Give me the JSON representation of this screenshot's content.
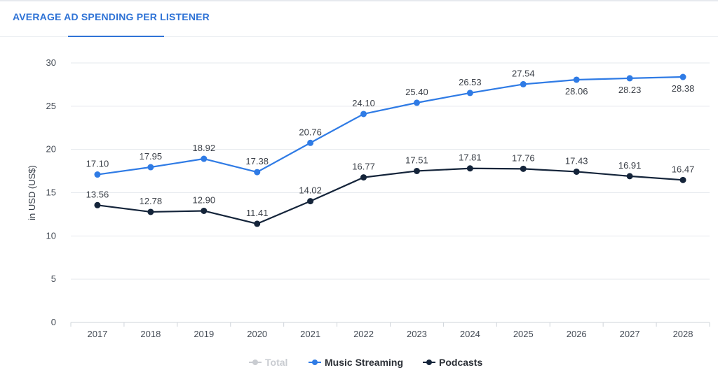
{
  "header": {
    "tab_label": "AVERAGE AD SPENDING PER LISTENER"
  },
  "chart_data": {
    "type": "line",
    "ylabel": "in USD (US$)",
    "ylim": [
      0,
      30
    ],
    "yticks": [
      0,
      5,
      10,
      15,
      20,
      25,
      30
    ],
    "categories": [
      "2017",
      "2018",
      "2019",
      "2020",
      "2021",
      "2022",
      "2023",
      "2024",
      "2025",
      "2026",
      "2027",
      "2028"
    ],
    "grid": "horizontal",
    "legend_position": "bottom",
    "series": [
      {
        "name": "Music Streaming",
        "color": "#2f7be5",
        "values": [
          17.1,
          17.95,
          18.92,
          17.38,
          20.76,
          24.1,
          25.4,
          26.53,
          27.54,
          28.06,
          28.23,
          28.38
        ],
        "labels": [
          "17.10",
          "17.95",
          "18.92",
          "17.38",
          "20.76",
          "24.10",
          "25.40",
          "26.53",
          "27.54",
          "28.06",
          "28.23",
          "28.38"
        ]
      },
      {
        "name": "Podcasts",
        "color": "#14243a",
        "values": [
          13.56,
          12.78,
          12.9,
          11.41,
          14.02,
          16.77,
          17.51,
          17.81,
          17.76,
          17.43,
          16.91,
          16.47
        ],
        "labels": [
          "13.56",
          "12.78",
          "12.90",
          "11.41",
          "14.02",
          "16.77",
          "17.51",
          "17.81",
          "17.76",
          "17.43",
          "16.91",
          "16.47"
        ]
      }
    ],
    "legend": [
      {
        "name": "Total",
        "color": "#c9ccd1",
        "enabled": false
      },
      {
        "name": "Music Streaming",
        "color": "#2f7be5",
        "enabled": true
      },
      {
        "name": "Podcasts",
        "color": "#14243a",
        "enabled": true
      }
    ]
  }
}
